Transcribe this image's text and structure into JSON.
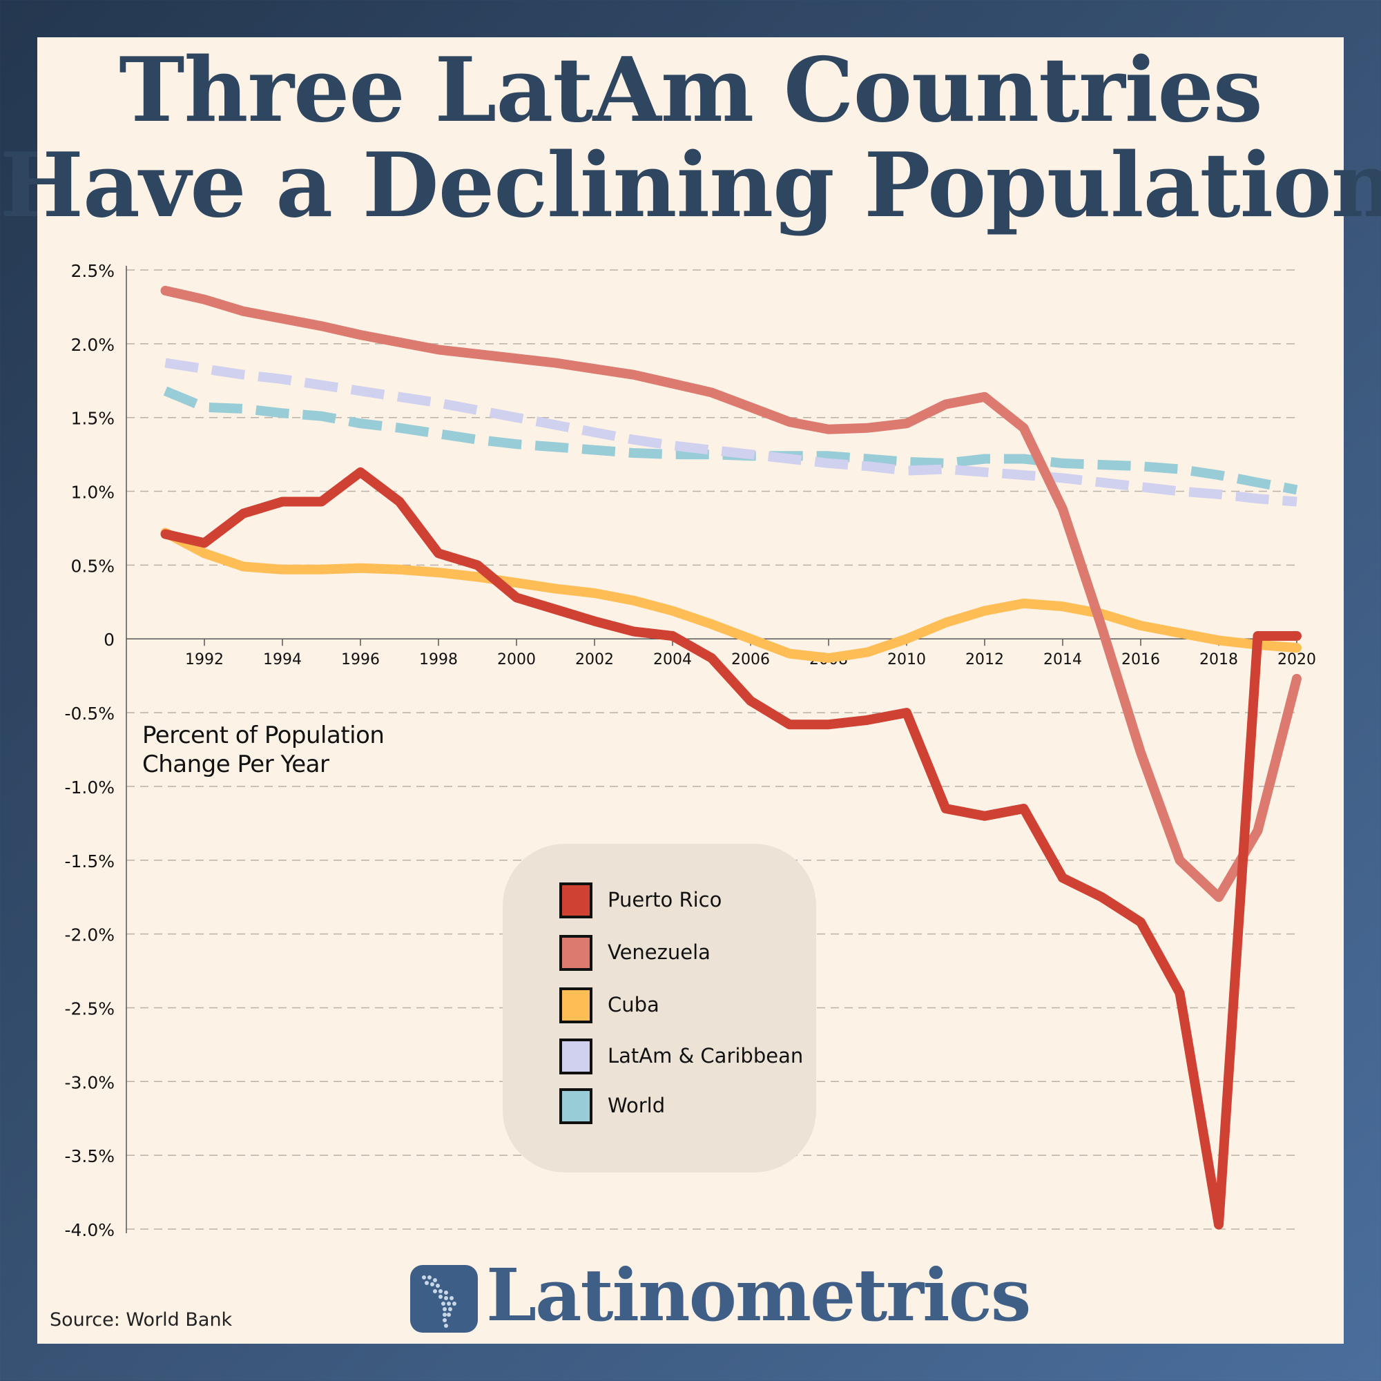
{
  "title_lines": [
    "Three LatAm Countries",
    "Have a Declining Population"
  ],
  "chart_data": {
    "type": "line",
    "ylabel": "Percent of Population Change Per Year",
    "y_label_lines": [
      "Percent of Population",
      "Change Per Year"
    ],
    "ylim": [
      -4.0,
      2.5
    ],
    "xlim": [
      1990,
      2020
    ],
    "y_ticks": [
      2.5,
      2.0,
      1.5,
      1.0,
      0.5,
      0,
      -0.5,
      -1.0,
      -1.5,
      -2.0,
      -2.5,
      -3.0,
      -3.5,
      -4.0
    ],
    "y_tick_labels": [
      "2.5%",
      "2.0%",
      "1.5%",
      "1.0%",
      "0.5%",
      "0",
      "-0.5%",
      "-1.0%",
      "-1.5%",
      "-2.0%",
      "-2.5%",
      "-3.0%",
      "-3.5%",
      "-4.0%"
    ],
    "x_ticks": [
      1992,
      1994,
      1996,
      1998,
      2000,
      2002,
      2004,
      2006,
      2008,
      2010,
      2012,
      2014,
      2016,
      2018,
      2020
    ],
    "x_tick_labels": [
      "1992",
      "1994",
      "1996",
      "1998",
      "2000",
      "2002",
      "2004",
      "2006",
      "2008",
      "2010",
      "2012",
      "2014",
      "2016",
      "2018",
      "2020"
    ],
    "grid": "horizontal dashed",
    "legend_position": "center-bottom",
    "x": [
      1991,
      1992,
      1993,
      1994,
      1995,
      1996,
      1997,
      1998,
      1999,
      2000,
      2001,
      2002,
      2003,
      2004,
      2005,
      2006,
      2007,
      2008,
      2009,
      2010,
      2011,
      2012,
      2013,
      2014,
      2015,
      2016,
      2017,
      2018,
      2019,
      2020
    ],
    "series": [
      {
        "name": "Puerto Rico",
        "color": "#cf4133",
        "style": "solid",
        "values": [
          0.71,
          0.65,
          0.85,
          0.93,
          0.93,
          1.13,
          0.93,
          0.58,
          0.5,
          0.28,
          0.2,
          0.12,
          0.05,
          0.02,
          -0.13,
          -0.42,
          -0.58,
          -0.58,
          -0.55,
          -0.5,
          -1.15,
          -1.2,
          -1.15,
          -1.62,
          -1.75,
          -1.92,
          -2.4,
          -3.97,
          0.02,
          0.02
        ]
      },
      {
        "name": "Venezuela",
        "color": "#dc7a6f",
        "style": "solid",
        "values": [
          2.36,
          2.3,
          2.22,
          2.17,
          2.12,
          2.06,
          2.01,
          1.96,
          1.93,
          1.9,
          1.87,
          1.83,
          1.79,
          1.73,
          1.67,
          1.57,
          1.47,
          1.42,
          1.43,
          1.46,
          1.59,
          1.64,
          1.43,
          0.88,
          0.08,
          -0.77,
          -1.5,
          -1.75,
          -1.3,
          -0.27
        ]
      },
      {
        "name": "Cuba",
        "color": "#ffbe55",
        "style": "solid",
        "values": [
          0.72,
          0.58,
          0.49,
          0.47,
          0.47,
          0.48,
          0.47,
          0.45,
          0.42,
          0.38,
          0.34,
          0.31,
          0.26,
          0.19,
          0.1,
          0.0,
          -0.1,
          -0.13,
          -0.09,
          0.0,
          0.11,
          0.19,
          0.24,
          0.22,
          0.17,
          0.09,
          0.04,
          -0.01,
          -0.04,
          -0.06
        ]
      },
      {
        "name": "LatAm & Caribbean",
        "color": "#d0d0ef",
        "style": "dashed",
        "values": [
          1.87,
          1.83,
          1.79,
          1.76,
          1.72,
          1.68,
          1.64,
          1.6,
          1.55,
          1.5,
          1.45,
          1.4,
          1.35,
          1.31,
          1.28,
          1.25,
          1.22,
          1.19,
          1.17,
          1.14,
          1.15,
          1.13,
          1.11,
          1.09,
          1.06,
          1.03,
          1.0,
          0.98,
          0.95,
          0.93
        ]
      },
      {
        "name": "World",
        "color": "#98ccd6",
        "style": "dashed",
        "values": [
          1.68,
          1.57,
          1.56,
          1.53,
          1.51,
          1.46,
          1.43,
          1.39,
          1.35,
          1.32,
          1.3,
          1.28,
          1.26,
          1.25,
          1.25,
          1.24,
          1.24,
          1.24,
          1.22,
          1.2,
          1.19,
          1.22,
          1.22,
          1.19,
          1.18,
          1.17,
          1.15,
          1.11,
          1.06,
          1.01
        ]
      }
    ]
  },
  "legend": [
    {
      "label": "Puerto Rico",
      "color": "#cf4133"
    },
    {
      "label": "Venezuela",
      "color": "#dc7a6f"
    },
    {
      "label": "Cuba",
      "color": "#ffbe55"
    },
    {
      "label": "LatAm & Caribbean",
      "color": "#d0d0ef"
    },
    {
      "label": "World",
      "color": "#98ccd6"
    }
  ],
  "logo_icon": "latin-america-map-icon",
  "brand": "Latinometrics",
  "source": "Source: World Bank"
}
